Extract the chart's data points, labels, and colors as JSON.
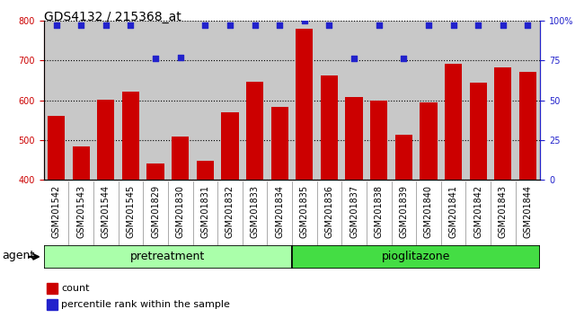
{
  "title": "GDS4132 / 215368_at",
  "samples": [
    "GSM201542",
    "GSM201543",
    "GSM201544",
    "GSM201545",
    "GSM201829",
    "GSM201830",
    "GSM201831",
    "GSM201832",
    "GSM201833",
    "GSM201834",
    "GSM201835",
    "GSM201836",
    "GSM201837",
    "GSM201838",
    "GSM201839",
    "GSM201840",
    "GSM201841",
    "GSM201842",
    "GSM201843",
    "GSM201844"
  ],
  "counts": [
    560,
    483,
    601,
    622,
    440,
    509,
    447,
    570,
    647,
    583,
    780,
    663,
    608,
    600,
    512,
    595,
    692,
    643,
    682,
    672
  ],
  "percentile_ranks": [
    97,
    97,
    97,
    97,
    76,
    77,
    97,
    97,
    97,
    97,
    100,
    97,
    76,
    97,
    76,
    97,
    97,
    97,
    97,
    97
  ],
  "pretreatment_label": "pretreatment",
  "pioglitazone_label": "pioglitazone",
  "pretreatment_count": 10,
  "ylim_left": [
    400,
    800
  ],
  "ylim_right": [
    0,
    100
  ],
  "bar_color": "#cc0000",
  "dot_color": "#2222cc",
  "plot_bg_color": "#c8c8c8",
  "xtick_bg_color": "#c8c8c8",
  "fig_bg_color": "#ffffff",
  "pretreatment_color": "#aaffaa",
  "pioglitazone_color": "#44dd44",
  "group_border_color": "#000000",
  "title_fontsize": 10,
  "tick_fontsize": 7,
  "label_fontsize": 9,
  "legend_fontsize": 8
}
